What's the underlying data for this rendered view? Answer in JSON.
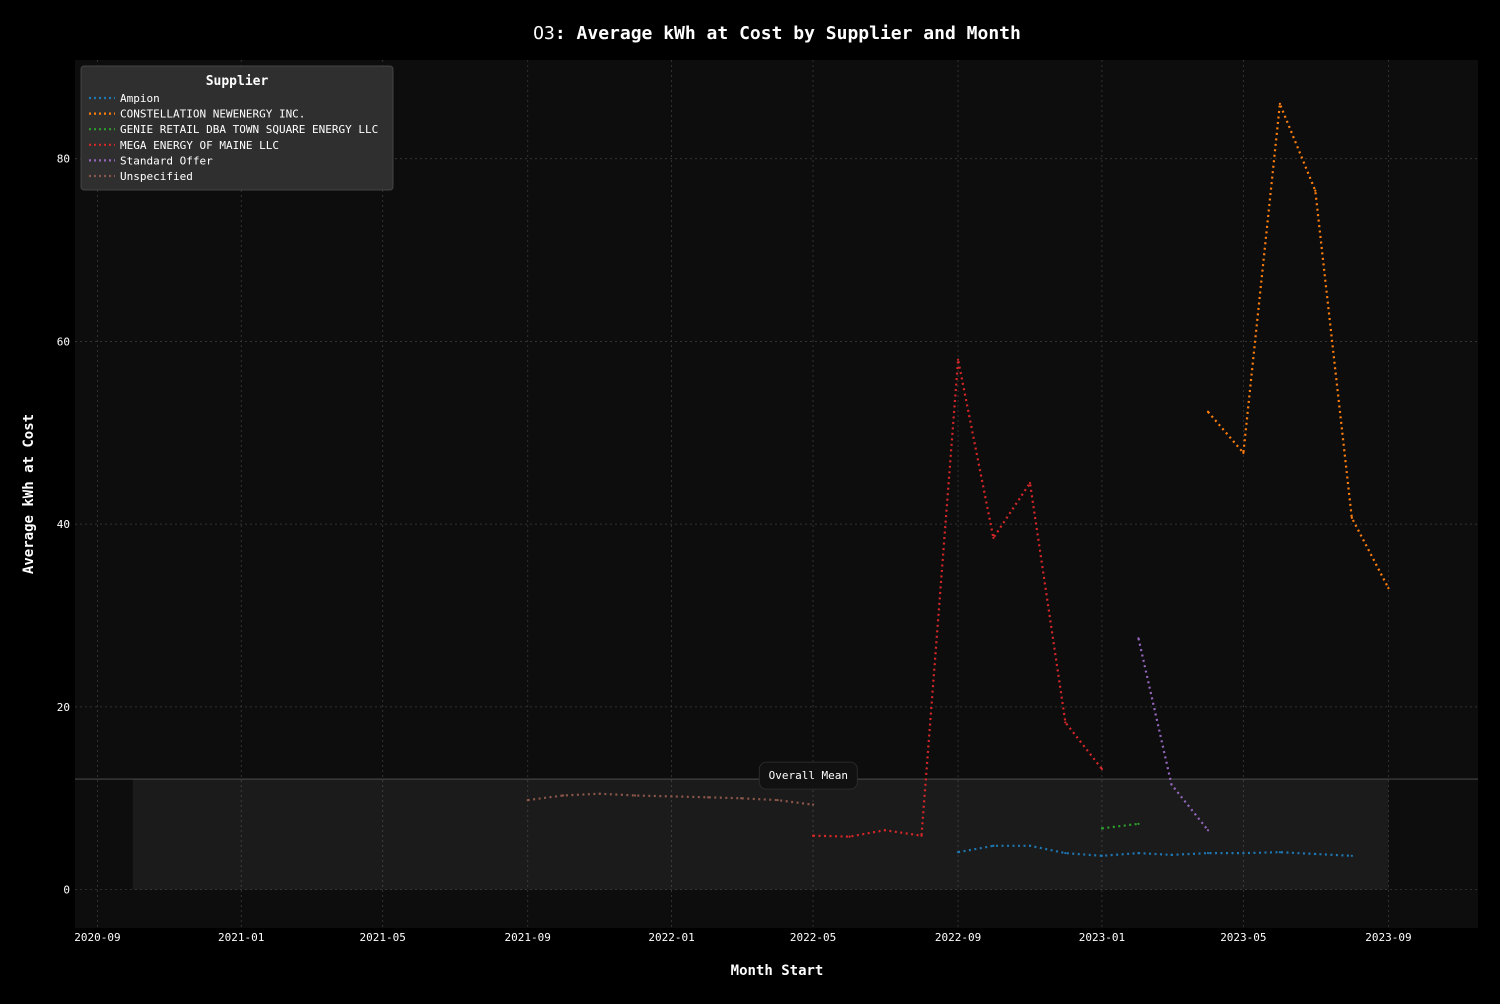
{
  "chart_data": {
    "type": "line",
    "title_prefix": "O3",
    "title_main": ": Average kWh at Cost by Supplier and Month",
    "xlabel": "Month Start",
    "ylabel": "Average kWh at Cost",
    "x_ticks": [
      "2020-09",
      "2021-01",
      "2021-05",
      "2021-09",
      "2022-01",
      "2022-05",
      "2022-09",
      "2023-01",
      "2023-05",
      "2023-09"
    ],
    "y_ticks": [
      0,
      20,
      40,
      60,
      80
    ],
    "xlim": [
      "2020-08-13",
      "2023-11-16"
    ],
    "ylim": [
      -4.2,
      90.8
    ],
    "grid": true,
    "legend": {
      "title": "Supplier",
      "placement": "top-left"
    },
    "annotation": {
      "text": "Overall Mean",
      "x": "2022-04-27",
      "y": 12.2
    },
    "mean_band": {
      "x_start": "2020-10-01",
      "x_end": "2023-09-01",
      "y_low": 0,
      "y_high": 12.1
    },
    "series": [
      {
        "name": "Ampion",
        "color": "#1f77b4",
        "points": [
          [
            "2022-09-01",
            4.1
          ],
          [
            "2022-10-01",
            4.8
          ],
          [
            "2022-11-01",
            4.8
          ],
          [
            "2022-12-01",
            4.0
          ],
          [
            "2023-01-01",
            3.7
          ],
          [
            "2023-02-01",
            4.0
          ],
          [
            "2023-03-01",
            3.8
          ],
          [
            "2023-04-01",
            4.0
          ],
          [
            "2023-05-01",
            4.0
          ],
          [
            "2023-06-01",
            4.1
          ],
          [
            "2023-07-01",
            3.9
          ],
          [
            "2023-08-01",
            3.7
          ]
        ]
      },
      {
        "name": "CONSTELLATION NEWENERGY INC.",
        "color": "#ff7f0e",
        "points": [
          [
            "2023-04-01",
            52.3
          ],
          [
            "2023-05-01",
            47.8
          ],
          [
            "2023-06-01",
            86.0
          ],
          [
            "2023-07-01",
            76.5
          ],
          [
            "2023-08-01",
            40.7
          ],
          [
            "2023-09-01",
            33.0
          ]
        ]
      },
      {
        "name": "GENIE RETAIL DBA TOWN SQUARE ENERGY LLC",
        "color": "#2ca02c",
        "points": [
          [
            "2023-01-01",
            6.7
          ],
          [
            "2023-02-01",
            7.2
          ]
        ]
      },
      {
        "name": "MEGA ENERGY OF MAINE LLC",
        "color": "#d62728",
        "points": [
          [
            "2022-05-01",
            5.9
          ],
          [
            "2022-06-01",
            5.8
          ],
          [
            "2022-07-01",
            6.5
          ],
          [
            "2022-08-01",
            5.9
          ],
          [
            "2022-09-01",
            58.0
          ],
          [
            "2022-10-01",
            38.5
          ],
          [
            "2022-11-01",
            44.5
          ],
          [
            "2022-12-01",
            18.3
          ],
          [
            "2023-01-01",
            13.2
          ]
        ]
      },
      {
        "name": "Standard Offer",
        "color": "#9467bd",
        "points": [
          [
            "2023-02-01",
            27.5
          ],
          [
            "2023-03-01",
            11.5
          ],
          [
            "2023-04-01",
            6.5
          ]
        ]
      },
      {
        "name": "Unspecified",
        "color": "#8c564b",
        "points": [
          [
            "2021-09-01",
            9.8
          ],
          [
            "2021-10-01",
            10.3
          ],
          [
            "2021-11-01",
            10.5
          ],
          [
            "2021-12-01",
            10.3
          ],
          [
            "2022-01-01",
            10.2
          ],
          [
            "2022-02-01",
            10.1
          ],
          [
            "2022-03-01",
            10.0
          ],
          [
            "2022-04-01",
            9.8
          ],
          [
            "2022-05-01",
            9.3
          ]
        ]
      }
    ]
  }
}
